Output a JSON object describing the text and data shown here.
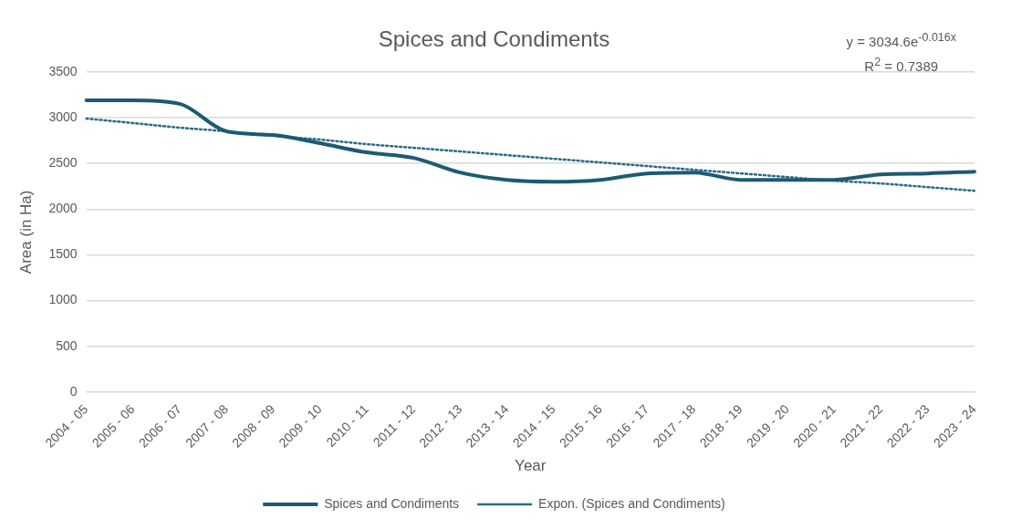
{
  "chart_data": {
    "type": "line",
    "title": "Spices and Condiments",
    "xlabel": "Year",
    "ylabel": "Area (in Ha)",
    "categories": [
      "2004 - 05",
      "2005 - 06",
      "2006 - 07",
      "2007 - 08",
      "2008 - 09",
      "2009 - 10",
      "2010 - 11",
      "2011 - 12",
      "2012 - 13",
      "2013 - 14",
      "2014 - 15",
      "2015 - 16",
      "2016 - 17",
      "2017 - 18",
      "2018 - 19",
      "2019 - 20",
      "2020 - 21",
      "2021 - 22",
      "2022 - 23",
      "2023 - 24"
    ],
    "series": [
      {
        "name": "Spices and Condiments",
        "color": "#1d5a73",
        "line_style": "solid",
        "values": [
          3190,
          3190,
          3150,
          2850,
          2810,
          2720,
          2620,
          2560,
          2400,
          2320,
          2300,
          2320,
          2390,
          2400,
          2320,
          2320,
          2320,
          2380,
          2390,
          2410
        ]
      },
      {
        "name": "Expon. (Spices and Condiments)",
        "color": "#2a6a88",
        "line_style": "dotted",
        "values": [
          2990,
          2940,
          2890,
          2850,
          2800,
          2760,
          2710,
          2670,
          2630,
          2590,
          2550,
          2510,
          2470,
          2430,
          2390,
          2350,
          2310,
          2280,
          2240,
          2200
        ]
      }
    ],
    "ylim": [
      0,
      3500
    ],
    "yticks": [
      0,
      500,
      1000,
      1500,
      2000,
      2500,
      3000,
      3500
    ],
    "grid": "y",
    "legend": "bottom",
    "marker": "none",
    "annotations": [
      "y = 3034.6e$^{-0.016x}$",
      "R$^{2}$ = 0.7389"
    ]
  }
}
